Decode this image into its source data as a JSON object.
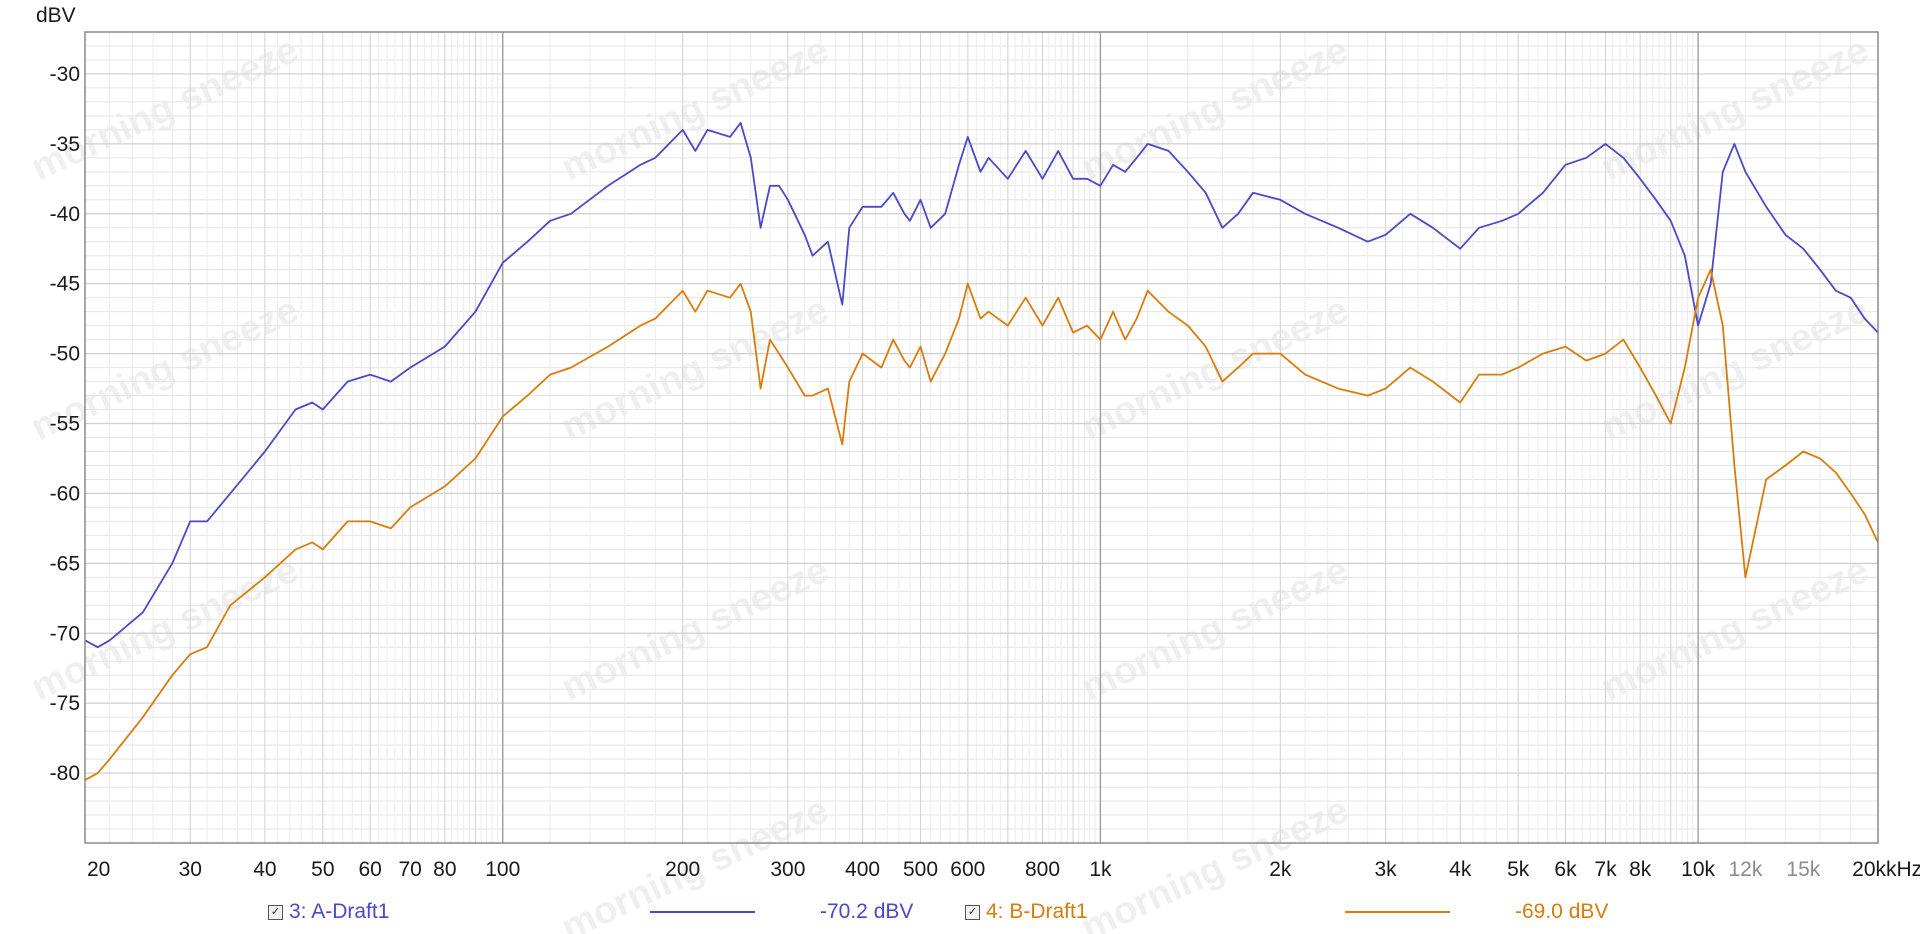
{
  "chart_data": {
    "type": "line",
    "ylabel": "dBV",
    "xunit": "kHz",
    "x_scale": "log",
    "xlim": [
      20,
      20000
    ],
    "ylim": [
      -85,
      -27
    ],
    "grid": true,
    "y_ticks": [
      -30,
      -35,
      -40,
      -45,
      -50,
      -55,
      -60,
      -65,
      -70,
      -75,
      -80
    ],
    "y_tick_labels": [
      "-30",
      "-35",
      "-40",
      "-45",
      "-50",
      "-55",
      "-60",
      "-65",
      "-70",
      "-75",
      "-80"
    ],
    "x_ticks": [
      20,
      30,
      40,
      50,
      60,
      70,
      80,
      100,
      200,
      300,
      400,
      500,
      600,
      800,
      1000,
      2000,
      3000,
      4000,
      5000,
      6000,
      7000,
      8000,
      10000,
      12000,
      15000,
      20000
    ],
    "x_tick_labels": [
      "20",
      "30",
      "40",
      "50",
      "60",
      "70",
      "80",
      "100",
      "200",
      "300",
      "400",
      "500",
      "600",
      "800",
      "1k",
      "2k",
      "3k",
      "4k",
      "5k",
      "6k",
      "7k",
      "8k",
      "10k",
      "12k",
      "15k",
      "20k"
    ],
    "watermark": "morning sneeze",
    "series": [
      {
        "name": "3: A-Draft1",
        "color": "#4a4ac8",
        "legend_value": "-70.2 dBV",
        "x": [
          20,
          21,
          22,
          25,
          28,
          30,
          32,
          35,
          40,
          45,
          48,
          50,
          55,
          60,
          65,
          70,
          80,
          90,
          100,
          110,
          120,
          130,
          150,
          170,
          180,
          200,
          210,
          220,
          240,
          250,
          260,
          270,
          280,
          290,
          300,
          320,
          330,
          350,
          370,
          380,
          400,
          430,
          450,
          470,
          480,
          500,
          520,
          550,
          580,
          600,
          630,
          650,
          700,
          750,
          800,
          850,
          900,
          950,
          1000,
          1050,
          1100,
          1150,
          1200,
          1300,
          1400,
          1500,
          1600,
          1700,
          1800,
          2000,
          2200,
          2500,
          2800,
          3000,
          3300,
          3600,
          4000,
          4300,
          4700,
          5000,
          5500,
          6000,
          6500,
          7000,
          7500,
          8000,
          8500,
          9000,
          9500,
          10000,
          10500,
          11000,
          11500,
          12000,
          13000,
          14000,
          15000,
          16000,
          17000,
          18000,
          19000,
          20000
        ],
        "y": [
          -70.5,
          -71,
          -70.5,
          -68.5,
          -65,
          -62,
          -62,
          -60,
          -57,
          -54,
          -53.5,
          -54,
          -52,
          -51.5,
          -52,
          -51,
          -49.5,
          -47,
          -43.5,
          -42,
          -40.5,
          -40,
          -38,
          -36.5,
          -36,
          -34,
          -35.5,
          -34,
          -34.5,
          -33.5,
          -36,
          -41,
          -38,
          -38,
          -39,
          -41.5,
          -43,
          -42,
          -46.5,
          -41,
          -39.5,
          -39.5,
          -38.5,
          -40,
          -40.5,
          -39,
          -41,
          -40,
          -36.5,
          -34.5,
          -37,
          -36,
          -37.5,
          -35.5,
          -37.5,
          -35.5,
          -37.5,
          -37.5,
          -38,
          -36.5,
          -37,
          -36,
          -35,
          -35.5,
          -37,
          -38.5,
          -41,
          -40,
          -38.5,
          -39,
          -40,
          -41,
          -42,
          -41.5,
          -40,
          -41,
          -42.5,
          -41,
          -40.5,
          -40,
          -38.5,
          -36.5,
          -36,
          -35,
          -36,
          -37.5,
          -39,
          -40.5,
          -43,
          -48,
          -45,
          -37,
          -35,
          -37,
          -39.5,
          -41.5,
          -42.5,
          -44,
          -45.5,
          -46,
          -47.5,
          -48.5
        ]
      },
      {
        "name": "4: B-Draft1",
        "color": "#d97c0c",
        "legend_value": "-69.0 dBV",
        "x": [
          20,
          21,
          22,
          25,
          28,
          30,
          32,
          35,
          40,
          45,
          48,
          50,
          55,
          60,
          65,
          70,
          80,
          90,
          100,
          110,
          120,
          130,
          150,
          170,
          180,
          200,
          210,
          220,
          240,
          250,
          260,
          270,
          280,
          290,
          300,
          320,
          330,
          350,
          370,
          380,
          400,
          430,
          450,
          470,
          480,
          500,
          520,
          550,
          580,
          600,
          630,
          650,
          700,
          750,
          800,
          850,
          900,
          950,
          1000,
          1050,
          1100,
          1150,
          1200,
          1300,
          1400,
          1500,
          1600,
          1700,
          1800,
          2000,
          2200,
          2500,
          2800,
          3000,
          3300,
          3600,
          4000,
          4300,
          4700,
          5000,
          5500,
          6000,
          6500,
          7000,
          7500,
          8000,
          8500,
          9000,
          9500,
          10000,
          10500,
          11000,
          11500,
          12000,
          13000,
          14000,
          15000,
          16000,
          17000,
          18000,
          19000,
          20000
        ],
        "y": [
          -80.5,
          -80,
          -79,
          -76,
          -73,
          -71.5,
          -71,
          -68,
          -66,
          -64,
          -63.5,
          -64,
          -62,
          -62,
          -62.5,
          -61,
          -59.5,
          -57.5,
          -54.5,
          -53,
          -51.5,
          -51,
          -49.5,
          -48,
          -47.5,
          -45.5,
          -47,
          -45.5,
          -46,
          -45,
          -47,
          -52.5,
          -49,
          -50,
          -51,
          -53,
          -53,
          -52.5,
          -56.5,
          -52,
          -50,
          -51,
          -49,
          -50.5,
          -51,
          -49.5,
          -52,
          -50,
          -47.5,
          -45,
          -47.5,
          -47,
          -48,
          -46,
          -48,
          -46,
          -48.5,
          -48,
          -49,
          -47,
          -49,
          -47.5,
          -45.5,
          -47,
          -48,
          -49.5,
          -52,
          -51,
          -50,
          -50,
          -51.5,
          -52.5,
          -53,
          -52.5,
          -51,
          -52,
          -53.5,
          -51.5,
          -51.5,
          -51,
          -50,
          -49.5,
          -50.5,
          -50,
          -49,
          -51,
          -53,
          -55,
          -51,
          -46,
          -44,
          -48,
          -58,
          -66,
          -59,
          -58,
          -57,
          -57.5,
          -58.5,
          -60,
          -61.5,
          -63.5
        ]
      }
    ]
  }
}
